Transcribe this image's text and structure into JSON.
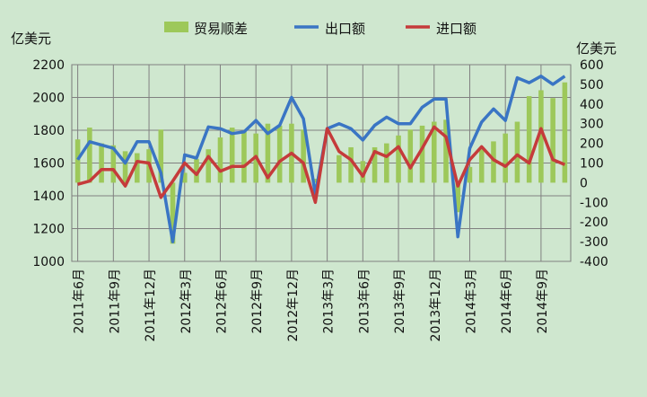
{
  "chart_data": {
    "type": "bar+line",
    "units_left": "亿美元",
    "units_right": "亿美元",
    "legend": [
      {
        "label": "贸易顺差",
        "color": "#9dc85a",
        "kind": "bar"
      },
      {
        "label": "出口额",
        "color": "#3a75c4",
        "kind": "line"
      },
      {
        "label": "进口额",
        "color": "#c53b3b",
        "kind": "line"
      }
    ],
    "left_axis": {
      "min": 1000,
      "max": 2200,
      "step": 200,
      "ticks": [
        "1000",
        "1200",
        "1400",
        "1600",
        "1800",
        "2000",
        "2200"
      ]
    },
    "right_axis": {
      "min": -400,
      "max": 600,
      "step": 100,
      "ticks": [
        "-400",
        "-300",
        "-200",
        "-100",
        "0",
        "100",
        "200",
        "300",
        "400",
        "500",
        "600"
      ]
    },
    "x_labels": [
      "2011年6月",
      "2011年9月",
      "2011年12月",
      "2012年3月",
      "2012年6月",
      "2012年9月",
      "2012年12月",
      "2013年3月",
      "2013年6月",
      "2013年9月",
      "2013年12月",
      "2014年3月",
      "2014年6月",
      "2014年9月"
    ],
    "months": [
      "2011-06",
      "2011-07",
      "2011-08",
      "2011-09",
      "2011-10",
      "2011-11",
      "2011-12",
      "2012-01",
      "2012-02",
      "2012-03",
      "2012-04",
      "2012-05",
      "2012-06",
      "2012-07",
      "2012-08",
      "2012-09",
      "2012-10",
      "2012-11",
      "2012-12",
      "2013-01",
      "2013-02",
      "2013-03",
      "2013-04",
      "2013-05",
      "2013-06",
      "2013-07",
      "2013-08",
      "2013-09",
      "2013-10",
      "2013-11",
      "2013-12",
      "2014-01",
      "2014-02",
      "2014-03",
      "2014-04",
      "2014-05",
      "2014-06",
      "2014-07",
      "2014-08",
      "2014-09",
      "2014-10",
      "2014-11"
    ],
    "series": [
      {
        "name": "贸易顺差",
        "axis": "right",
        "values": [
          220,
          280,
          200,
          190,
          160,
          150,
          170,
          270,
          -310,
          50,
          120,
          170,
          230,
          280,
          260,
          250,
          300,
          290,
          300,
          270,
          20,
          0,
          140,
          180,
          110,
          180,
          200,
          240,
          270,
          290,
          310,
          320,
          -150,
          80,
          170,
          210,
          250,
          310,
          440,
          470,
          430,
          510
        ]
      },
      {
        "name": "出口额",
        "axis": "left",
        "values": [
          1620,
          1730,
          1710,
          1690,
          1600,
          1730,
          1730,
          1540,
          1120,
          1650,
          1630,
          1820,
          1810,
          1780,
          1790,
          1860,
          1780,
          1830,
          2000,
          1870,
          1410,
          1810,
          1840,
          1810,
          1740,
          1830,
          1880,
          1840,
          1840,
          1940,
          1990,
          1990,
          1150,
          1690,
          1850,
          1930,
          1860,
          2120,
          2090,
          2130,
          2080,
          2130
        ]
      },
      {
        "name": "进口额",
        "axis": "left",
        "values": [
          1470,
          1490,
          1560,
          1560,
          1460,
          1610,
          1600,
          1390,
          1490,
          1600,
          1530,
          1640,
          1550,
          1580,
          1580,
          1640,
          1510,
          1610,
          1660,
          1600,
          1360,
          1810,
          1670,
          1620,
          1520,
          1670,
          1640,
          1700,
          1570,
          1690,
          1820,
          1760,
          1460,
          1620,
          1700,
          1620,
          1580,
          1650,
          1600,
          1810,
          1620,
          1590
        ]
      }
    ]
  }
}
